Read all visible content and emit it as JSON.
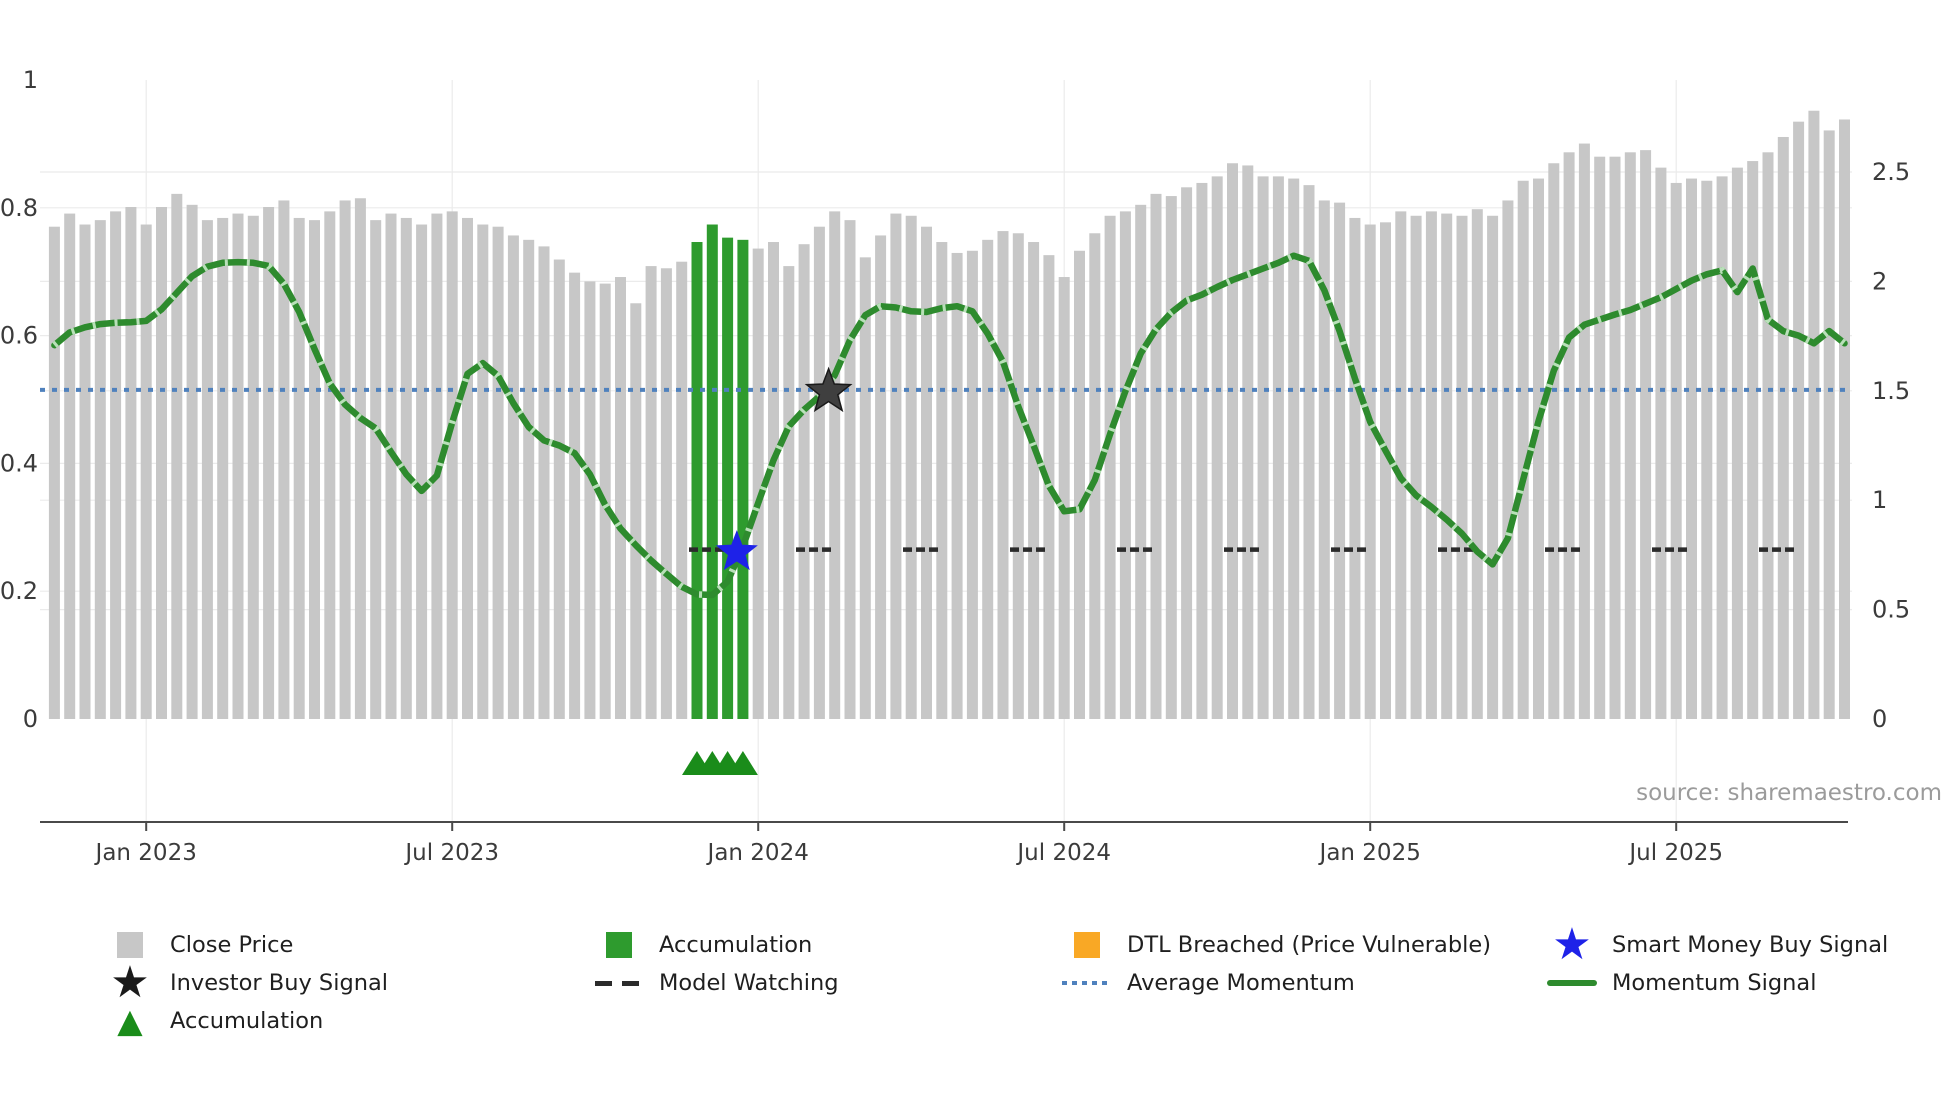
{
  "source_note": "source: sharemaestro.com",
  "colors": {
    "close_price_bar": "#c7c7c7",
    "accumulation_bar": "#2e9b2e",
    "momentum_line": "#2e8b2e",
    "momentum_notch": "#b9e0b9",
    "average_momentum": "#4f81bd",
    "model_watching": "#2b2b2b",
    "investor_star_fill": "#3f3f3f",
    "investor_star_edge": "#1a1a1a",
    "smart_money_star": "#1e22e8",
    "accumulation_triangle": "#1a8c1a",
    "dtl_breached": "#f9a825",
    "grid": "#ebebeb",
    "axis_spine": "#4a4a4a",
    "tick_label": "#3b3b3b"
  },
  "axes": {
    "left_ticks": [
      {
        "label": "1",
        "value": 1
      },
      {
        "label": "0.8",
        "value": 0.8
      },
      {
        "label": "0.6",
        "value": 0.6
      },
      {
        "label": "0.4",
        "value": 0.4
      },
      {
        "label": "0.2",
        "value": 0.2
      },
      {
        "label": "0",
        "value": 0
      }
    ],
    "right_ticks": [
      {
        "label": "2.5",
        "value": 2.5
      },
      {
        "label": "2",
        "value": 2
      },
      {
        "label": "1.5",
        "value": 1.5
      },
      {
        "label": "1",
        "value": 1
      },
      {
        "label": "0.5",
        "value": 0.5
      },
      {
        "label": "0",
        "value": 0
      }
    ],
    "x_ticks": [
      {
        "label": "Jan 2023",
        "week": 6
      },
      {
        "label": "Jul 2023",
        "week": 26
      },
      {
        "label": "Jan 2024",
        "week": 46
      },
      {
        "label": "Jul 2024",
        "week": 66
      },
      {
        "label": "Jan 2025",
        "week": 86
      },
      {
        "label": "Jul 2025",
        "week": 106
      }
    ]
  },
  "chart_data": {
    "type": "bar",
    "subtype": "price-bars-with-momentum-lines",
    "title": "",
    "xlabel": "",
    "ylabel_left_range": [
      0,
      1
    ],
    "ylabel_right_range": [
      0,
      2.5
    ],
    "grid": true,
    "legend_position": "bottom",
    "weeks": 118,
    "series": [
      {
        "name": "Close Price",
        "type": "bar",
        "axis": "right",
        "values": [
          2.25,
          2.31,
          2.26,
          2.28,
          2.32,
          2.34,
          2.26,
          2.34,
          2.4,
          2.35,
          2.28,
          2.29,
          2.31,
          2.3,
          2.34,
          2.37,
          2.29,
          2.28,
          2.32,
          2.37,
          2.38,
          2.28,
          2.31,
          2.29,
          2.26,
          2.31,
          2.32,
          2.29,
          2.26,
          2.25,
          2.21,
          2.19,
          2.16,
          2.1,
          2.04,
          2.0,
          1.99,
          2.02,
          1.9,
          2.07,
          2.06,
          2.09,
          2.18,
          2.26,
          2.2,
          2.19,
          2.15,
          2.18,
          2.07,
          2.17,
          2.25,
          2.32,
          2.28,
          2.11,
          2.21,
          2.31,
          2.3,
          2.25,
          2.18,
          2.13,
          2.14,
          2.19,
          2.23,
          2.22,
          2.18,
          2.12,
          2.02,
          2.14,
          2.22,
          2.3,
          2.32,
          2.35,
          2.4,
          2.39,
          2.43,
          2.45,
          2.48,
          2.54,
          2.53,
          2.48,
          2.48,
          2.47,
          2.44,
          2.37,
          2.36,
          2.29,
          2.26,
          2.27,
          2.32,
          2.3,
          2.32,
          2.31,
          2.3,
          2.33,
          2.3,
          2.37,
          2.46,
          2.47,
          2.54,
          2.59,
          2.63,
          2.57,
          2.57,
          2.59,
          2.6,
          2.52,
          2.45,
          2.47,
          2.46,
          2.48,
          2.52,
          2.55,
          2.59,
          2.66,
          2.73,
          2.78,
          2.69,
          2.74
        ]
      },
      {
        "name": "Momentum Signal",
        "type": "line",
        "axis": "left",
        "values": [
          0.585,
          0.605,
          0.613,
          0.618,
          0.62,
          0.621,
          0.623,
          0.641,
          0.667,
          0.693,
          0.708,
          0.714,
          0.715,
          0.714,
          0.709,
          0.681,
          0.637,
          0.579,
          0.525,
          0.492,
          0.471,
          0.455,
          0.418,
          0.383,
          0.357,
          0.381,
          0.464,
          0.54,
          0.557,
          0.537,
          0.494,
          0.457,
          0.436,
          0.428,
          0.416,
          0.383,
          0.335,
          0.298,
          0.272,
          0.248,
          0.227,
          0.207,
          0.195,
          0.194,
          0.215,
          0.27,
          0.338,
          0.405,
          0.458,
          0.484,
          0.505,
          0.538,
          0.593,
          0.632,
          0.646,
          0.644,
          0.638,
          0.637,
          0.643,
          0.646,
          0.638,
          0.603,
          0.559,
          0.489,
          0.428,
          0.365,
          0.325,
          0.328,
          0.374,
          0.446,
          0.513,
          0.572,
          0.61,
          0.636,
          0.655,
          0.664,
          0.676,
          0.687,
          0.696,
          0.705,
          0.714,
          0.725,
          0.717,
          0.671,
          0.607,
          0.533,
          0.465,
          0.42,
          0.377,
          0.35,
          0.332,
          0.312,
          0.29,
          0.262,
          0.242,
          0.283,
          0.375,
          0.466,
          0.545,
          0.597,
          0.617,
          0.625,
          0.633,
          0.64,
          0.65,
          0.66,
          0.673,
          0.686,
          0.696,
          0.702,
          0.668,
          0.705,
          0.625,
          0.607,
          0.6,
          0.588,
          0.607,
          0.588
        ]
      },
      {
        "name": "Average Momentum",
        "type": "hline",
        "axis": "left",
        "value": 0.515
      },
      {
        "name": "Model Watching",
        "type": "hline",
        "axis": "left",
        "value": 0.265,
        "start_week": 42
      }
    ],
    "accumulation_weeks": [
      42,
      43,
      44,
      45
    ],
    "signals": [
      {
        "name": "Smart Money Buy Signal",
        "marker": "star",
        "color_key": "smart_money_star",
        "week": 44.6,
        "value": 0.261
      },
      {
        "name": "Investor Buy Signal",
        "marker": "star",
        "color_key": "investor_star_fill",
        "week": 50.6,
        "value": 0.512
      }
    ]
  },
  "legend": {
    "items": [
      {
        "row": 0,
        "col": 0,
        "marker": "square",
        "color_key": "close_price_bar",
        "label": "Close Price"
      },
      {
        "row": 0,
        "col": 1,
        "marker": "square",
        "color_key": "accumulation_bar",
        "label": "Accumulation"
      },
      {
        "row": 0,
        "col": 2,
        "marker": "square",
        "color_key": "dtl_breached",
        "label": "DTL Breached (Price Vulnerable)"
      },
      {
        "row": 0,
        "col": 3,
        "marker": "star",
        "color_key": "smart_money_star",
        "label": "Smart Money Buy Signal"
      },
      {
        "row": 1,
        "col": 0,
        "marker": "star",
        "color_key": "investor_star_edge",
        "label": "Investor Buy Signal"
      },
      {
        "row": 1,
        "col": 1,
        "marker": "dashes",
        "color_key": "model_watching",
        "label": "Model Watching"
      },
      {
        "row": 1,
        "col": 2,
        "marker": "dots",
        "color_key": "average_momentum",
        "label": "Average Momentum"
      },
      {
        "row": 1,
        "col": 3,
        "marker": "line",
        "color_key": "momentum_line",
        "label": "Momentum Signal"
      },
      {
        "row": 2,
        "col": 0,
        "marker": "triangle",
        "color_key": "accumulation_triangle",
        "label": "Accumulation"
      }
    ]
  }
}
